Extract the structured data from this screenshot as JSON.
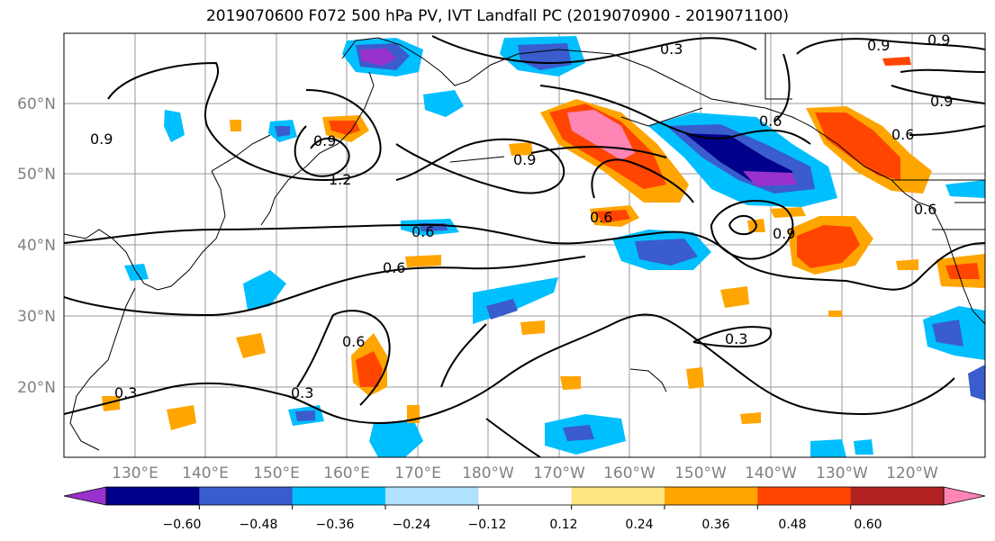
{
  "title": "2019070600 F072 500 hPa PV, IVT Landfall PC (2019070900 - 2019071100)",
  "map": {
    "lat_labels": [
      "60°N",
      "50°N",
      "40°N",
      "30°N",
      "20°N"
    ],
    "lon_labels": [
      "130°E",
      "140°E",
      "150°E",
      "160°E",
      "170°E",
      "180°W",
      "170°W",
      "160°W",
      "150°W",
      "140°W",
      "130°W",
      "120°W"
    ],
    "contour_labels": [
      "0.3",
      "0.9",
      "0.9",
      "0.9",
      "0.9",
      "0.6",
      "0.6",
      "1.2",
      "0.9",
      "0.6",
      "0.6",
      "0.6",
      "0.9",
      "0.6",
      "0.3",
      "0.3",
      "0.3",
      "0.9",
      "0.6"
    ]
  },
  "colorbar": {
    "tick_labels": [
      "−0.60",
      "−0.48",
      "−0.36",
      "−0.24",
      "−0.12",
      "0.12",
      "0.24",
      "0.36",
      "0.48",
      "0.60"
    ],
    "colors": [
      "#9932cc",
      "#00008b",
      "#3a5ccc",
      "#00bfff",
      "#b0e2ff",
      "#ffffff",
      "#ffe680",
      "#ffa500",
      "#ff4500",
      "#b22222",
      "#ff85b5"
    ]
  }
}
